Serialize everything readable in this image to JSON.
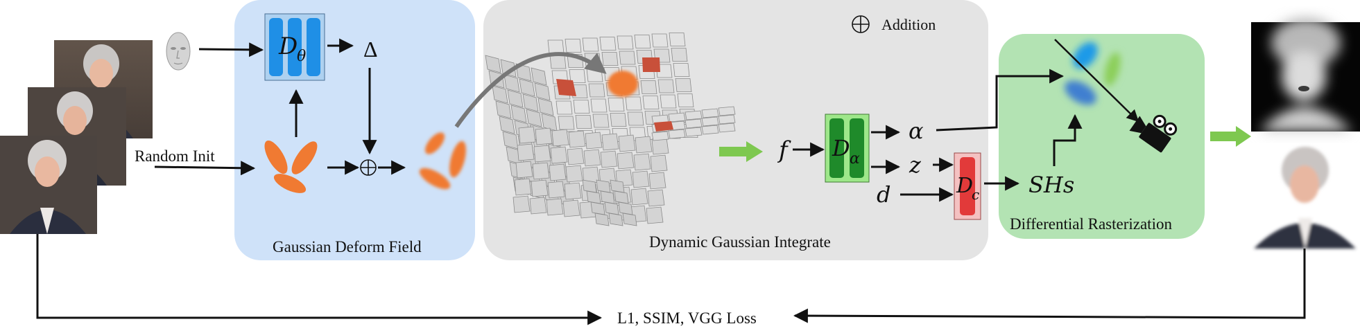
{
  "panels": {
    "deform": {
      "caption": "Gaussian Deform Field"
    },
    "integrate": {
      "caption": "Dynamic Gaussian Integrate",
      "legend": "Addition"
    },
    "raster": {
      "caption": "Differential Rasterization"
    }
  },
  "labels": {
    "random_init": "Random Init",
    "loss": "L1, SSIM, VGG Loss"
  },
  "symbols": {
    "d_theta_main": "D",
    "d_theta_sub": "θ",
    "delta": "Δ",
    "f": "f",
    "d_alpha_main": "D",
    "d_alpha_sub": "α",
    "alpha": "α",
    "z": "z",
    "d": "d",
    "d_c_main": "D",
    "d_c_sub": "c",
    "shs": "SHs"
  },
  "colors": {
    "deform_bg": "#cfe2f9",
    "integrate_bg": "#e4e4e4",
    "raster_bg": "#b3e3b3",
    "mlp_blue": "#1f8fe6",
    "mlp_green": "#1f8a2a",
    "mlp_red": "#e23a3a",
    "gaussian_orange": "#f07a32",
    "green_arrow": "#7ec850"
  },
  "icons": [
    "face-photo-stack",
    "face-mesh-icon",
    "addition-icon",
    "camera-icon",
    "depth-map-image",
    "rendered-face-image"
  ]
}
